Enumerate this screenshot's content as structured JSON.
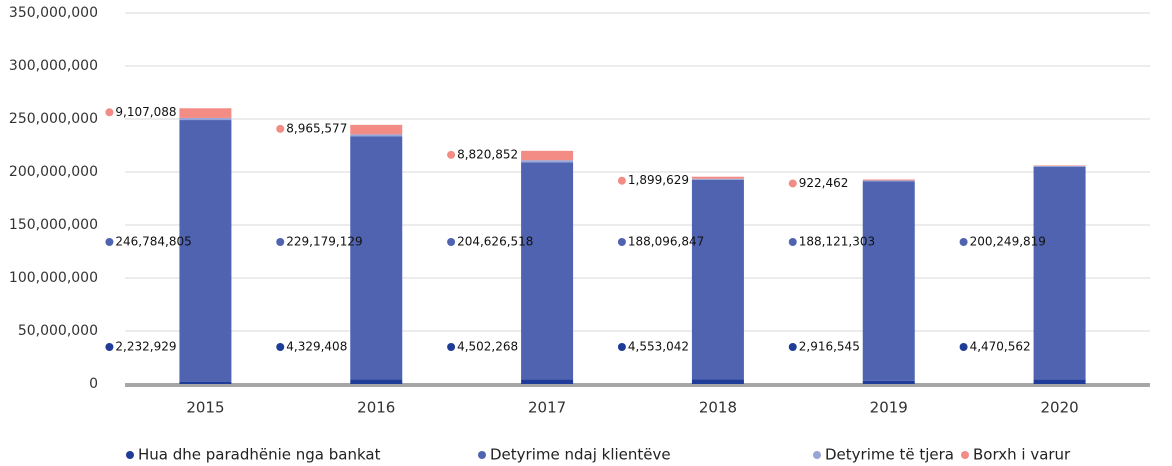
{
  "chart_data": {
    "type": "stacked_bar",
    "categories": [
      "2015",
      "2016",
      "2017",
      "2018",
      "2019",
      "2020"
    ],
    "series": [
      {
        "name": "Hua dhe paradhënie nga bankat",
        "color": "#1f3c98",
        "values": [
          2232929,
          4329408,
          4502268,
          4553042,
          2916545,
          4470562
        ],
        "value_labels": [
          "2,232,929",
          "4,329,408",
          "4,502,268",
          "4,553,042",
          "2,916,545",
          "4,470,562"
        ]
      },
      {
        "name": "Detyrime ndaj klientëve",
        "color": "#4f63b0",
        "values": [
          246784805,
          229179129,
          204626518,
          188096847,
          188121303,
          200249819
        ],
        "value_labels": [
          "246,784,805",
          "229,179,129",
          "204,626,518",
          "188,096,847",
          "188,121,303",
          "200,249,819"
        ]
      },
      {
        "name": "Detyrime të tjera",
        "color": "#97a5d8",
        "values": [
          2000000,
          2000000,
          2000000,
          1000000,
          1000000,
          1000000
        ]
      },
      {
        "name": "Borxh i varur",
        "color": "#f28c84",
        "values": [
          9107088,
          8965577,
          8820852,
          1899629,
          922462,
          500000
        ],
        "value_labels": [
          "9,107,088",
          "8,965,577",
          "8,820,852",
          "1,899,629",
          "922,462",
          null
        ]
      }
    ],
    "ylim": [
      0,
      350000000
    ],
    "yticks": [
      0,
      {
        "value": 50000000,
        "label": "50,000,000"
      },
      {
        "value": 100000000,
        "label": "100,000,000"
      },
      {
        "value": 150000000,
        "label": "150,000,000"
      },
      {
        "value": 200000000,
        "label": "200,000,000"
      },
      {
        "value": 250000000,
        "label": "250,000,000"
      },
      {
        "value": 300000000,
        "label": "300,000,000"
      },
      {
        "value": 350000000,
        "label": "350,000,000"
      }
    ],
    "grid": true,
    "legend": "bottom"
  }
}
